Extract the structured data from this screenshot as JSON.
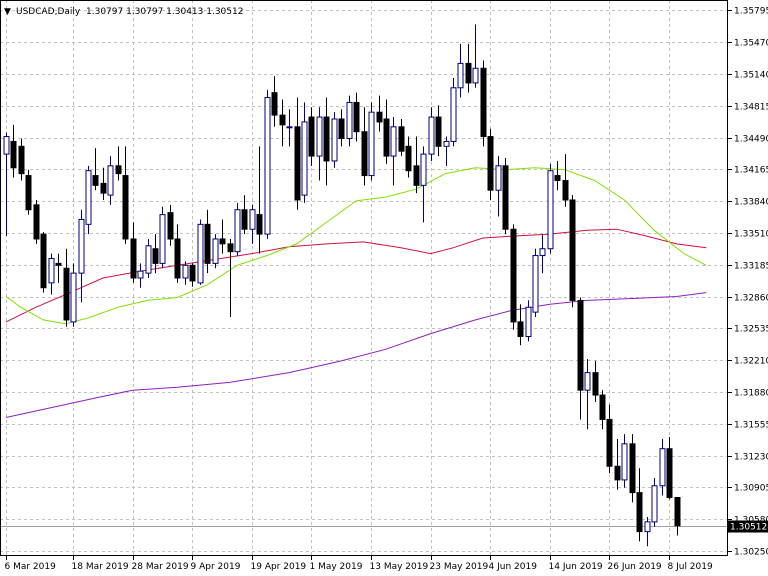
{
  "header": {
    "arrow_glyph": "▼",
    "symbol": "USDCAD,Daily",
    "ohlc": "1.30797 1.30797 1.30413 1.30512"
  },
  "price_tag": "1.30512",
  "colors": {
    "bull_fill": "#ffffff",
    "bull_stroke": "#000080",
    "bear_fill": "#000000",
    "grid": "#c0c0c0",
    "ma_fast": "#80e000",
    "ma_mid": "#d01040",
    "ma_slow": "#9020c0"
  },
  "chart_data": {
    "type": "candlestick",
    "grid": true,
    "ylim": [
      1.302,
      1.359
    ],
    "y_ticks": [
      "1.35795",
      "1.35470",
      "1.35140",
      "1.34815",
      "1.34490",
      "1.34165",
      "1.33840",
      "1.33510",
      "1.33185",
      "1.32860",
      "1.32535",
      "1.32210",
      "1.31880",
      "1.31555",
      "1.31230",
      "1.30905",
      "1.30580",
      "1.30250"
    ],
    "x_ticks": [
      "6 Mar 2019",
      "18 Mar 2019",
      "28 Mar 2019",
      "9 Apr 2019",
      "19 Apr 2019",
      "1 May 2019",
      "13 May 2019",
      "23 May 2019",
      "4 Jun 2019",
      "14 Jun 2019",
      "26 Jun 2019",
      "8 Jul 2019"
    ],
    "x_tick_index": [
      0,
      9,
      17,
      25,
      33,
      41,
      49,
      57,
      65,
      73,
      81,
      89
    ],
    "candles": [
      [
        1.3432,
        1.3454,
        1.3348,
        1.345
      ],
      [
        1.3445,
        1.3462,
        1.3408,
        1.3418
      ],
      [
        1.344,
        1.3448,
        1.3405,
        1.3412
      ],
      [
        1.341,
        1.3416,
        1.337,
        1.3375
      ],
      [
        1.338,
        1.3385,
        1.334,
        1.3345
      ],
      [
        1.335,
        1.3352,
        1.329,
        1.3295
      ],
      [
        1.33,
        1.333,
        1.3288,
        1.3325
      ],
      [
        1.332,
        1.333,
        1.33,
        1.3318
      ],
      [
        1.3315,
        1.3335,
        1.3255,
        1.3262
      ],
      [
        1.326,
        1.332,
        1.3255,
        1.331
      ],
      [
        1.331,
        1.3375,
        1.328,
        1.3365
      ],
      [
        1.336,
        1.342,
        1.335,
        1.3415
      ],
      [
        1.341,
        1.3438,
        1.3395,
        1.34
      ],
      [
        1.3402,
        1.3418,
        1.3385,
        1.3392
      ],
      [
        1.339,
        1.343,
        1.338,
        1.342
      ],
      [
        1.342,
        1.344,
        1.3405,
        1.3412
      ],
      [
        1.341,
        1.344,
        1.334,
        1.3345
      ],
      [
        1.3345,
        1.3362,
        1.33,
        1.3305
      ],
      [
        1.3305,
        1.332,
        1.3295,
        1.3312
      ],
      [
        1.331,
        1.3345,
        1.3305,
        1.3338
      ],
      [
        1.3335,
        1.335,
        1.331,
        1.332
      ],
      [
        1.332,
        1.3378,
        1.3315,
        1.337
      ],
      [
        1.3372,
        1.338,
        1.3338,
        1.3345
      ],
      [
        1.3345,
        1.336,
        1.33,
        1.3305
      ],
      [
        1.3305,
        1.3322,
        1.3298,
        1.3318
      ],
      [
        1.3318,
        1.332,
        1.3296,
        1.3302
      ],
      [
        1.33,
        1.3365,
        1.3298,
        1.336
      ],
      [
        1.336,
        1.3375,
        1.331,
        1.332
      ],
      [
        1.332,
        1.335,
        1.3315,
        1.3345
      ],
      [
        1.3345,
        1.3365,
        1.333,
        1.334
      ],
      [
        1.334,
        1.3345,
        1.3265,
        1.3332
      ],
      [
        1.3332,
        1.3382,
        1.3328,
        1.3375
      ],
      [
        1.3375,
        1.339,
        1.335,
        1.3355
      ],
      [
        1.3355,
        1.338,
        1.334,
        1.3375
      ],
      [
        1.337,
        1.344,
        1.333,
        1.335
      ],
      [
        1.335,
        1.3498,
        1.3345,
        1.349
      ],
      [
        1.3495,
        1.3512,
        1.346,
        1.3472
      ],
      [
        1.3472,
        1.3488,
        1.344,
        1.3462
      ],
      [
        1.346,
        1.3478,
        1.344,
        1.346
      ],
      [
        1.346,
        1.349,
        1.3375,
        1.3385
      ],
      [
        1.339,
        1.3485,
        1.3382,
        1.3465
      ],
      [
        1.347,
        1.348,
        1.342,
        1.343
      ],
      [
        1.343,
        1.348,
        1.3405,
        1.347
      ],
      [
        1.347,
        1.349,
        1.34,
        1.3425
      ],
      [
        1.3425,
        1.3475,
        1.3418,
        1.3468
      ],
      [
        1.3468,
        1.3478,
        1.344,
        1.3448
      ],
      [
        1.3448,
        1.3492,
        1.344,
        1.3485
      ],
      [
        1.3485,
        1.3495,
        1.3445,
        1.3455
      ],
      [
        1.3455,
        1.348,
        1.34,
        1.341
      ],
      [
        1.341,
        1.3485,
        1.3405,
        1.3475
      ],
      [
        1.3475,
        1.3492,
        1.3455,
        1.3465
      ],
      [
        1.3468,
        1.3488,
        1.3422,
        1.343
      ],
      [
        1.343,
        1.347,
        1.34,
        1.346
      ],
      [
        1.346,
        1.3468,
        1.343,
        1.3435
      ],
      [
        1.344,
        1.345,
        1.3408,
        1.3415
      ],
      [
        1.342,
        1.345,
        1.3392,
        1.34
      ],
      [
        1.34,
        1.344,
        1.3362,
        1.3432
      ],
      [
        1.3432,
        1.348,
        1.3425,
        1.347
      ],
      [
        1.347,
        1.3482,
        1.343,
        1.344
      ],
      [
        1.344,
        1.345,
        1.342,
        1.3445
      ],
      [
        1.3445,
        1.351,
        1.344,
        1.35
      ],
      [
        1.35,
        1.3545,
        1.349,
        1.3525
      ],
      [
        1.3525,
        1.3545,
        1.3495,
        1.3505
      ],
      [
        1.3505,
        1.3565,
        1.35,
        1.352
      ],
      [
        1.352,
        1.3528,
        1.344,
        1.345
      ],
      [
        1.345,
        1.3458,
        1.3385,
        1.3395
      ],
      [
        1.3395,
        1.343,
        1.3368,
        1.342
      ],
      [
        1.342,
        1.3428,
        1.335,
        1.3355
      ],
      [
        1.3355,
        1.336,
        1.3252,
        1.326
      ],
      [
        1.326,
        1.3278,
        1.3236,
        1.3245
      ],
      [
        1.3245,
        1.3282,
        1.324,
        1.3275
      ],
      [
        1.327,
        1.3335,
        1.3265,
        1.3328
      ],
      [
        1.3328,
        1.335,
        1.331,
        1.3335
      ],
      [
        1.3335,
        1.3422,
        1.333,
        1.3415
      ],
      [
        1.341,
        1.3425,
        1.3395,
        1.3405
      ],
      [
        1.3405,
        1.3432,
        1.3378,
        1.3385
      ],
      [
        1.3385,
        1.339,
        1.3275,
        1.3282
      ],
      [
        1.3282,
        1.3285,
        1.316,
        1.319
      ],
      [
        1.319,
        1.3222,
        1.315,
        1.3208
      ],
      [
        1.3208,
        1.322,
        1.3178,
        1.3185
      ],
      [
        1.3185,
        1.319,
        1.315,
        1.316
      ],
      [
        1.316,
        1.3175,
        1.3105,
        1.3112
      ],
      [
        1.3112,
        1.314,
        1.3088,
        1.3098
      ],
      [
        1.3098,
        1.3145,
        1.309,
        1.3135
      ],
      [
        1.3135,
        1.3145,
        1.3075,
        1.3085
      ],
      [
        1.3085,
        1.311,
        1.3035,
        1.3045
      ],
      [
        1.3045,
        1.306,
        1.303,
        1.3055
      ],
      [
        1.3055,
        1.31,
        1.305,
        1.3092
      ],
      [
        1.3092,
        1.314,
        1.3082,
        1.313
      ],
      [
        1.313,
        1.3142,
        1.3078,
        1.308
      ],
      [
        1.308,
        1.308,
        1.3041,
        1.3051
      ]
    ],
    "ma_fast": [
      [
        0,
        1.3286
      ],
      [
        2,
        1.3275
      ],
      [
        5,
        1.3262
      ],
      [
        8,
        1.3258
      ],
      [
        11,
        1.3264
      ],
      [
        15,
        1.3275
      ],
      [
        19,
        1.3282
      ],
      [
        23,
        1.3285
      ],
      [
        27,
        1.3298
      ],
      [
        31,
        1.3318
      ],
      [
        35,
        1.3328
      ],
      [
        39,
        1.334
      ],
      [
        43,
        1.3362
      ],
      [
        47,
        1.3384
      ],
      [
        51,
        1.3388
      ],
      [
        55,
        1.3396
      ],
      [
        59,
        1.3412
      ],
      [
        63,
        1.3418
      ],
      [
        67,
        1.3416
      ],
      [
        71,
        1.3418
      ],
      [
        75,
        1.3416
      ],
      [
        79,
        1.3405
      ],
      [
        83,
        1.3385
      ],
      [
        87,
        1.3354
      ],
      [
        91,
        1.333
      ],
      [
        94,
        1.3318
      ]
    ],
    "ma_mid": [
      [
        0,
        1.326
      ],
      [
        4,
        1.3275
      ],
      [
        8,
        1.3288
      ],
      [
        13,
        1.3305
      ],
      [
        18,
        1.3312
      ],
      [
        23,
        1.3318
      ],
      [
        28,
        1.3324
      ],
      [
        33,
        1.333
      ],
      [
        38,
        1.3337
      ],
      [
        43,
        1.334
      ],
      [
        48,
        1.3342
      ],
      [
        53,
        1.3336
      ],
      [
        57,
        1.333
      ],
      [
        60,
        1.3336
      ],
      [
        64,
        1.3346
      ],
      [
        68,
        1.3348
      ],
      [
        73,
        1.335
      ],
      [
        78,
        1.3354
      ],
      [
        82,
        1.3355
      ],
      [
        86,
        1.3348
      ],
      [
        90,
        1.334
      ],
      [
        94,
        1.3336
      ]
    ],
    "ma_slow": [
      [
        0,
        1.3162
      ],
      [
        6,
        1.3172
      ],
      [
        12,
        1.3182
      ],
      [
        17,
        1.319
      ],
      [
        23,
        1.3193
      ],
      [
        30,
        1.3198
      ],
      [
        38,
        1.3208
      ],
      [
        45,
        1.322
      ],
      [
        51,
        1.3232
      ],
      [
        57,
        1.3248
      ],
      [
        63,
        1.3262
      ],
      [
        68,
        1.3272
      ],
      [
        73,
        1.3278
      ],
      [
        78,
        1.3282
      ],
      [
        84,
        1.3284
      ],
      [
        90,
        1.3286
      ],
      [
        94,
        1.329
      ]
    ]
  }
}
